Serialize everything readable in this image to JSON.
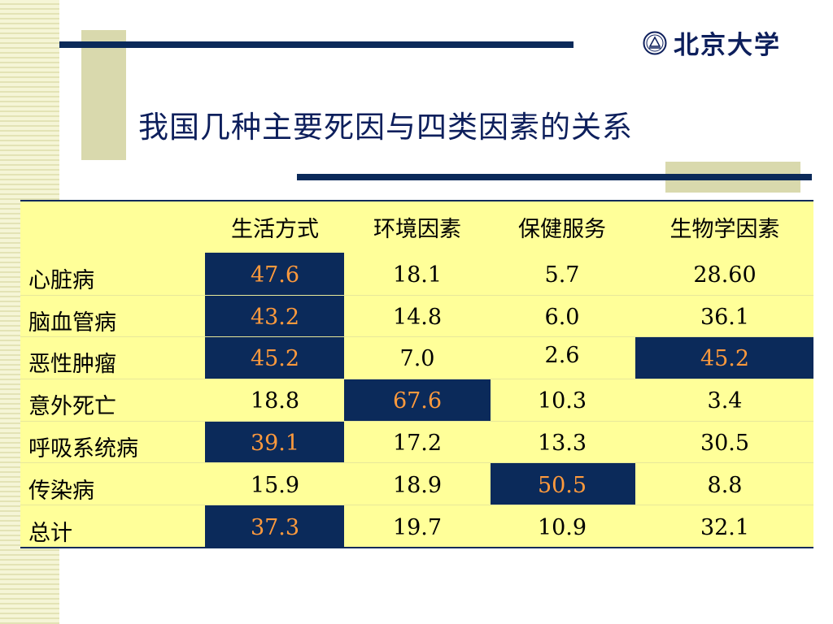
{
  "brand": {
    "logo_text": "北京大学"
  },
  "slide": {
    "title": "我国几种主要死因与四类因素的关系"
  },
  "colors": {
    "navy": "#0b2a5a",
    "highlight_text": "#ff9a3c",
    "table_bg": "#ffff99",
    "decor_tan": "#d9d9ad"
  },
  "table": {
    "headers": [
      "",
      "生活方式",
      "环境因素",
      "保健服务",
      "生物学因素"
    ],
    "rows": [
      {
        "label": "心脏病",
        "values": [
          "47.6",
          "18.1",
          "5.7",
          "28.60"
        ],
        "highlight": [
          0
        ]
      },
      {
        "label": "脑血管病",
        "values": [
          "43.2",
          "14.8",
          "6.0",
          "36.1"
        ],
        "highlight": [
          0
        ]
      },
      {
        "label": "恶性肿瘤",
        "values": [
          "45.2",
          "7.0",
          "2.6",
          "45.2"
        ],
        "highlight": [
          0,
          3
        ]
      },
      {
        "label": "意外死亡",
        "values": [
          "18.8",
          "67.6",
          "10.3",
          "3.4"
        ],
        "highlight": [
          1
        ]
      },
      {
        "label": "呼吸系统病",
        "values": [
          "39.1",
          "17.2",
          "13.3",
          "30.5"
        ],
        "highlight": [
          0
        ]
      },
      {
        "label": "传染病",
        "values": [
          "15.9",
          "18.9",
          "50.5",
          "8.8"
        ],
        "highlight": [
          2
        ]
      },
      {
        "label": "总计",
        "values": [
          "37.3",
          "19.7",
          "10.9",
          "32.1"
        ],
        "highlight": [
          0
        ]
      }
    ]
  }
}
